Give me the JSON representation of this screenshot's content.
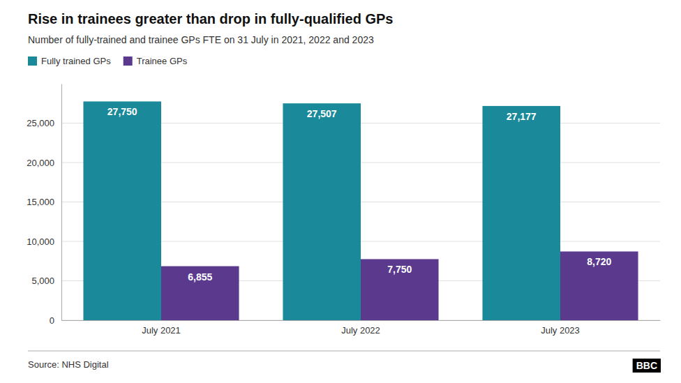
{
  "chart_data": {
    "type": "bar",
    "title": "Rise in trainees greater than drop in fully-qualified GPs",
    "subtitle": "Number of fully-trained and trainee GPs FTE on 31 July in 2021, 2022 and 2023",
    "source": "Source: NHS Digital",
    "annotations": [
      "BBC"
    ],
    "categories": [
      "July 2021",
      "July 2022",
      "July 2023"
    ],
    "series": [
      {
        "name": "Fully trained GPs",
        "color": "#1a8a9a",
        "values": [
          27750,
          27507,
          27177
        ],
        "value_labels": [
          "27,750",
          "27,507",
          "27,177"
        ]
      },
      {
        "name": "Trainee GPs",
        "color": "#5b3a8e",
        "values": [
          6855,
          7750,
          8720
        ],
        "value_labels": [
          "6,855",
          "7,750",
          "8,720"
        ]
      }
    ],
    "ylim": [
      0,
      30000
    ],
    "yticks": [
      0,
      {
        "value": 5000,
        "label": "5,000"
      },
      {
        "value": 10000,
        "label": "10,000"
      },
      {
        "value": 15000,
        "label": "15,000"
      },
      {
        "value": 20000,
        "label": "20,000"
      },
      {
        "value": 25000,
        "label": "25,000"
      }
    ],
    "grid": true,
    "legend": "top-left",
    "data_labels": true
  }
}
